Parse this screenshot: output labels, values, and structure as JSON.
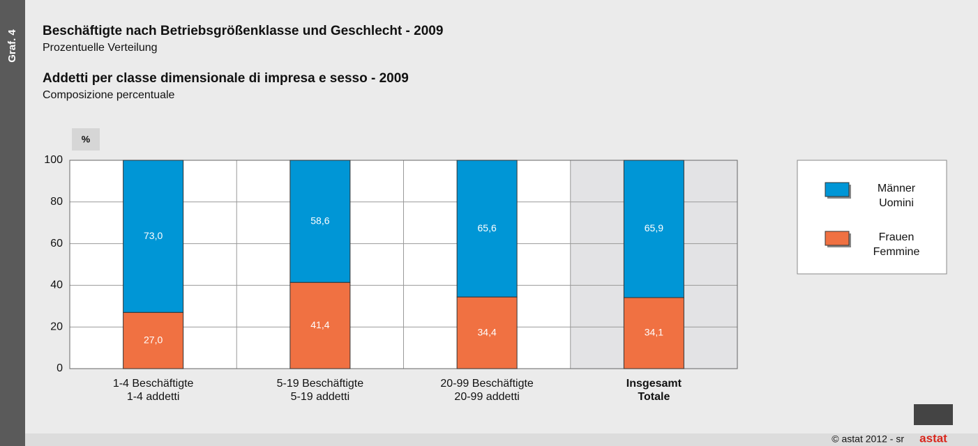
{
  "chart_data": {
    "type": "stacked_bar",
    "side_label": "Graf. 4",
    "title": "Beschäftigte nach Betriebsgrößenklasse und Geschlecht - 2009",
    "subtitle": "Prozentuelle Verteilung",
    "title_it": "Addetti per classe dimensionale di impresa e sesso - 2009",
    "subtitle_it": "Composizione percentuale",
    "y_label": "%",
    "categories": [
      [
        "1-4 Beschäftigte",
        "1-4 addetti"
      ],
      [
        "5-19 Beschäftigte",
        "5-19 addetti"
      ],
      [
        "20-99 Beschäftigte",
        "20-99 addetti"
      ],
      [
        "Insgesamt",
        "Totale"
      ]
    ],
    "highlight": 3,
    "series": [
      {
        "name": [
          "Männer",
          "Uomini"
        ],
        "color": "#0096d6",
        "values": [
          73.0,
          58.6,
          65.6,
          65.9
        ],
        "value_labels": [
          "73,0",
          "58,6",
          "65,6",
          "65,9"
        ]
      },
      {
        "name": [
          "Frauen",
          "Femmine"
        ],
        "color": "#f07142",
        "values": [
          27.0,
          41.4,
          34.4,
          34.1
        ],
        "value_labels": [
          "27,0",
          "41,4",
          "34,4",
          "34,1"
        ]
      }
    ],
    "ylim": [
      0,
      100
    ],
    "yticks": [
      0,
      20,
      40,
      60,
      80,
      100
    ],
    "grid": true,
    "footer": "© astat 2012 - sr",
    "logo": "astat"
  }
}
